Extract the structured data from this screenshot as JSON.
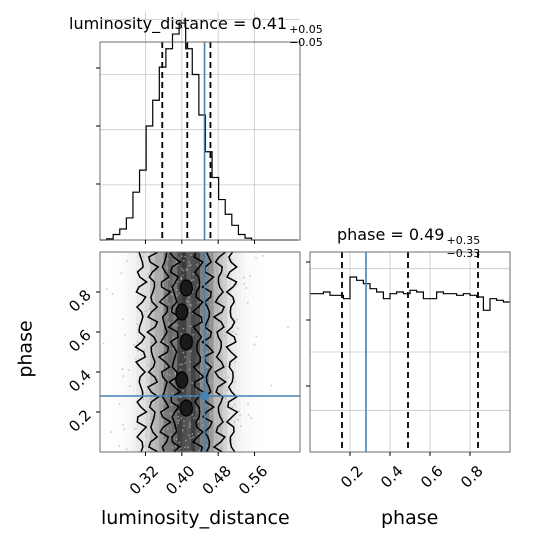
{
  "chart_data": [
    {
      "type": "histogram",
      "panel": "luminosity_distance-marginal",
      "title": {
        "param": "luminosity_distance",
        "median": "0.41",
        "plus": "+0.05",
        "minus": "−0.05"
      },
      "xlim": [
        0.22,
        0.66
      ],
      "ylim": [
        0,
        0.62
      ],
      "grid": true,
      "bin_edges": [
        0.22,
        0.2345,
        0.249,
        0.2635,
        0.278,
        0.2925,
        0.307,
        0.3215,
        0.336,
        0.3505,
        0.365,
        0.3795,
        0.394,
        0.4085,
        0.423,
        0.4375,
        0.452,
        0.4665,
        0.481,
        0.4955,
        0.51,
        0.5245,
        0.539,
        0.5535,
        0.568,
        0.5825,
        0.597,
        0.6115,
        0.626,
        0.6405,
        0.655
      ],
      "heights": [
        0.0,
        0.003,
        0.015,
        0.03,
        0.06,
        0.13,
        0.19,
        0.31,
        0.38,
        0.47,
        0.52,
        0.56,
        0.59,
        0.52,
        0.45,
        0.34,
        0.24,
        0.17,
        0.11,
        0.07,
        0.04,
        0.015,
        0.005,
        0,
        0,
        0,
        0,
        0,
        0,
        0
      ],
      "quantile_lines": [
        0.357,
        0.412,
        0.463
      ],
      "truth": 0.45,
      "truth_color": "#4682b4",
      "x_ticks": [
        "0.32",
        "0.40",
        "0.48",
        "0.56"
      ],
      "x_tick_values": [
        0.32,
        0.4,
        0.48,
        0.56
      ]
    },
    {
      "type": "scatter+contour",
      "panel": "phase-vs-luminosity_distance",
      "xlim": [
        0.22,
        0.66
      ],
      "ylim": [
        0.0,
        1.0
      ],
      "x_label": "luminosity_distance",
      "y_label": "phase",
      "x_ticks": [
        "0.32",
        "0.40",
        "0.48",
        "0.56"
      ],
      "x_tick_values": [
        0.32,
        0.4,
        0.48,
        0.56
      ],
      "y_ticks": [
        "0.2",
        "0.4",
        "0.6",
        "0.8"
      ],
      "y_tick_values": [
        0.2,
        0.4,
        0.6,
        0.8
      ],
      "truth": [
        0.45,
        0.28
      ],
      "truth_color": "#4682b4",
      "density_center_x": 0.41,
      "density_sigma_x": 0.05
    },
    {
      "type": "histogram",
      "panel": "phase-marginal",
      "title": {
        "param": "phase",
        "median": "0.49",
        "plus": "+0.35",
        "minus": "−0.33"
      },
      "xlim": [
        0.0,
        1.0
      ],
      "ylim": [
        0,
        1.2
      ],
      "grid": true,
      "bin_edges": [
        0.0,
        0.033,
        0.067,
        0.1,
        0.133,
        0.167,
        0.2,
        0.233,
        0.267,
        0.3,
        0.333,
        0.367,
        0.4,
        0.433,
        0.467,
        0.5,
        0.533,
        0.567,
        0.6,
        0.633,
        0.667,
        0.7,
        0.733,
        0.767,
        0.8,
        0.833,
        0.867,
        0.9,
        0.933,
        0.967,
        1.0
      ],
      "heights": [
        0.95,
        0.95,
        0.96,
        0.94,
        0.94,
        0.92,
        1.05,
        1.03,
        1.01,
        0.98,
        0.96,
        0.92,
        0.95,
        0.96,
        0.95,
        0.97,
        0.96,
        0.92,
        0.92,
        0.96,
        0.95,
        0.95,
        0.94,
        0.95,
        0.94,
        0.93,
        0.85,
        0.92,
        0.91,
        0.9
      ],
      "quantile_lines": [
        0.16,
        0.49,
        0.84
      ],
      "truth": 0.28,
      "truth_color": "#4682b4",
      "x_ticks": [
        "0.2",
        "0.4",
        "0.6",
        "0.8"
      ],
      "x_tick_values": [
        0.2,
        0.4,
        0.6,
        0.8
      ],
      "x_label": "phase"
    }
  ]
}
